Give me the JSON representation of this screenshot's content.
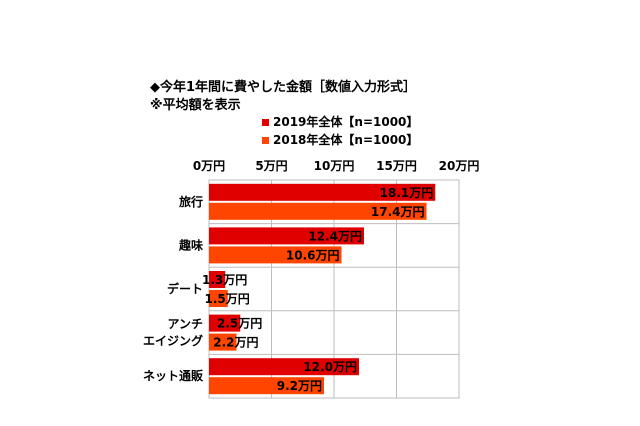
{
  "header": {
    "title": "◆今年1年間に費やした金額［数値入力形式］",
    "subtitle": "※平均額を表示"
  },
  "chart_data": {
    "type": "bar",
    "orientation": "horizontal",
    "title": "◆今年1年間に費やした金額［数値入力形式］",
    "subtitle": "※平均額を表示",
    "categories": [
      "旅行",
      "趣味",
      "デート",
      "アンチ\nエイジング",
      "ネット通販"
    ],
    "series": [
      {
        "name": "2019年全体【n=1000】",
        "color": "#e00000",
        "values": [
          18.1,
          12.4,
          1.3,
          2.5,
          12.0
        ],
        "labels": [
          "18.1万円",
          "12.4万円",
          "1.3万円",
          "2.5万円",
          "12.0万円"
        ]
      },
      {
        "name": "2018年全体【n=1000】",
        "color": "#ff4500",
        "values": [
          17.4,
          10.6,
          1.5,
          2.2,
          9.2
        ],
        "labels": [
          "17.4万円",
          "10.6万円",
          "1.5万円",
          "2.2万円",
          "9.2万円"
        ]
      }
    ],
    "xlim": [
      0,
      20
    ],
    "ticks": [
      0,
      5,
      10,
      15,
      20
    ],
    "tick_labels": [
      "0万円",
      "5万円",
      "10万円",
      "15万円",
      "20万円"
    ],
    "legend_position": "top",
    "grid": true
  }
}
